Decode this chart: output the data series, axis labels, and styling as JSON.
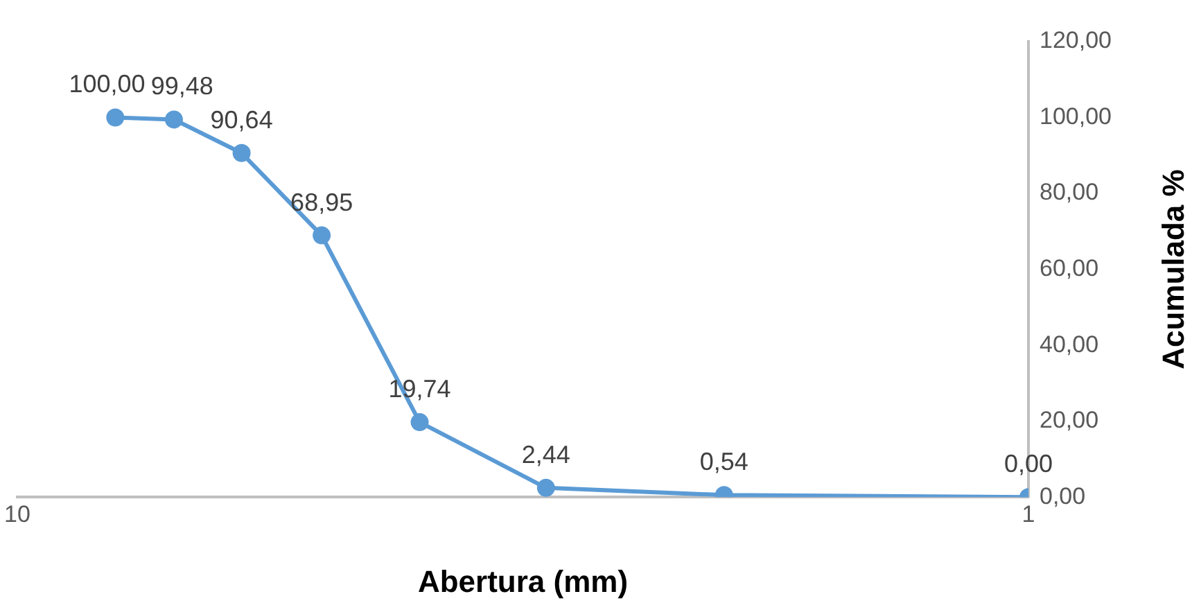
{
  "chart_data": {
    "type": "line",
    "xlabel": "Abertura (mm)",
    "ylabel": "Acumulada %",
    "x": [
      8,
      7,
      6,
      5,
      4,
      3,
      2,
      1
    ],
    "series": [
      {
        "color": "#5b9bd5",
        "values": [
          100.0,
          99.48,
          90.64,
          68.95,
          19.74,
          2.44,
          0.54,
          0.0
        ],
        "value_labels": [
          "100,00",
          "99,48",
          "90,64",
          "68,95",
          "19,74",
          "2,44",
          "0,54",
          "0,00"
        ]
      }
    ],
    "log": "x",
    "xlim": [
      10,
      1
    ],
    "xticks": [
      10,
      1
    ],
    "ylim": [
      0,
      120
    ],
    "yticks": [
      {
        "value": 0,
        "label": "0,00"
      },
      {
        "value": 20,
        "label": "20,00"
      },
      {
        "value": 40,
        "label": "40,00"
      },
      {
        "value": 60,
        "label": "60,00"
      },
      {
        "value": 80,
        "label": "80,00"
      },
      {
        "value": 100,
        "label": "100,00"
      },
      {
        "value": 120,
        "label": "120,00"
      }
    ],
    "grid": false,
    "legend": false,
    "marker": "circle",
    "line_style": "solid"
  }
}
